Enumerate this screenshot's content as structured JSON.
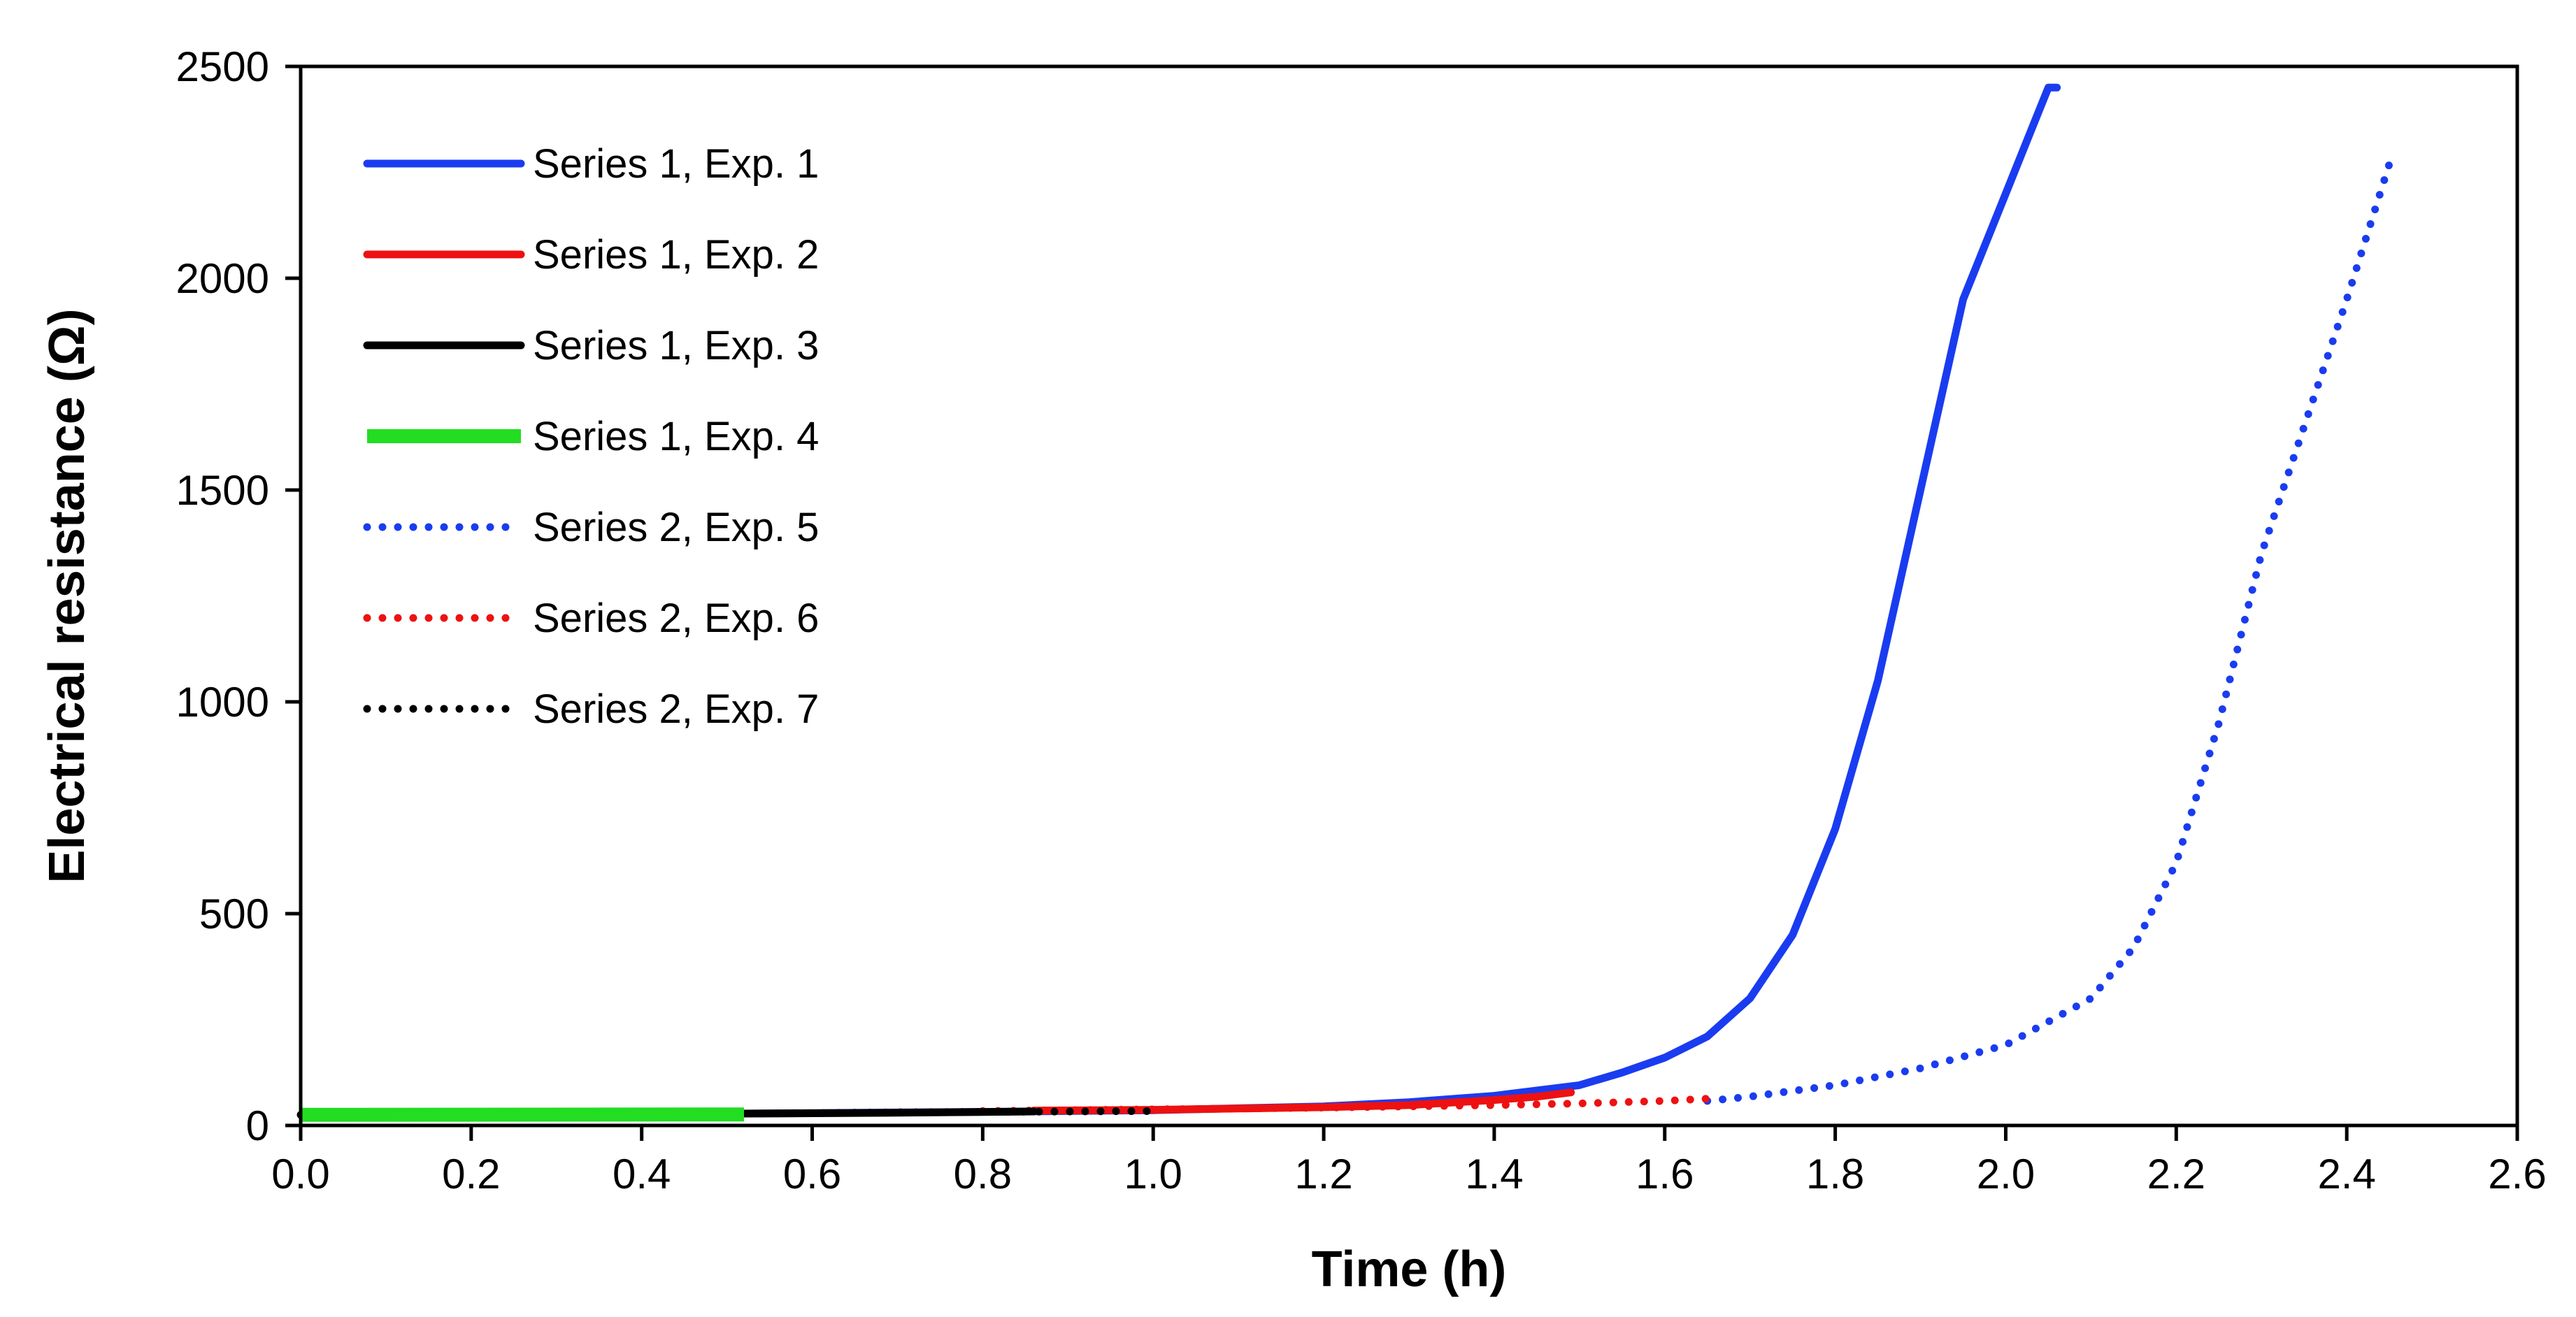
{
  "chart_data": {
    "type": "line",
    "title": "",
    "xlabel": "Time (h)",
    "ylabel": "Electrical resistance (Ω)",
    "xlim": [
      0.0,
      2.6
    ],
    "ylim": [
      0,
      2500
    ],
    "x_ticks": [
      "0.0",
      "0.2",
      "0.4",
      "0.6",
      "0.8",
      "1.0",
      "1.2",
      "1.4",
      "1.6",
      "1.8",
      "2.0",
      "2.2",
      "2.4",
      "2.6"
    ],
    "y_ticks": [
      "0",
      "500",
      "1000",
      "1500",
      "2000",
      "2500"
    ],
    "legend_position": "top-left",
    "grid": false,
    "series": [
      {
        "name": "Series 1, Exp. 1",
        "color": "#1a3cf0",
        "style": "solid",
        "x": [
          0.52,
          0.8,
          1.0,
          1.2,
          1.3,
          1.4,
          1.5,
          1.55,
          1.6,
          1.65,
          1.7,
          1.75,
          1.8,
          1.85,
          1.9,
          1.95,
          2.0,
          2.02,
          2.04,
          2.05,
          2.06
        ],
        "y": [
          28,
          32,
          36,
          45,
          55,
          70,
          95,
          125,
          160,
          210,
          300,
          450,
          700,
          1050,
          1500,
          1950,
          2200,
          2300,
          2400,
          2450,
          2450
        ]
      },
      {
        "name": "Series 1, Exp. 2",
        "color": "#ee1111",
        "style": "solid",
        "x": [
          0.86,
          1.0,
          1.1,
          1.2,
          1.3,
          1.4,
          1.45,
          1.49
        ],
        "y": [
          35,
          37,
          40,
          43,
          48,
          60,
          68,
          78
        ]
      },
      {
        "name": "Series 1, Exp. 3",
        "color": "#000000",
        "style": "solid",
        "x": [
          0.52,
          0.7,
          0.86
        ],
        "y": [
          28,
          30,
          33
        ]
      },
      {
        "name": "Series 1, Exp. 4",
        "color": "#22dd22",
        "style": "solid-thick",
        "x": [
          0.0,
          0.52
        ],
        "y": [
          25,
          26
        ]
      },
      {
        "name": "Series 2, Exp. 5",
        "color": "#1a3cf0",
        "style": "dotted",
        "x": [
          1.65,
          1.7,
          1.8,
          1.9,
          2.0,
          2.1,
          2.15,
          2.2,
          2.25,
          2.3,
          2.35,
          2.4,
          2.45
        ],
        "y": [
          58,
          68,
          95,
          135,
          190,
          300,
          420,
          620,
          950,
          1350,
          1650,
          1950,
          2270
        ]
      },
      {
        "name": "Series 2, Exp. 6",
        "color": "#ee1111",
        "style": "dotted",
        "x": [
          0.8,
          1.0,
          1.2,
          1.4,
          1.5,
          1.6,
          1.65
        ],
        "y": [
          34,
          38,
          42,
          48,
          52,
          58,
          63
        ]
      },
      {
        "name": "Series 2, Exp. 7",
        "color": "#000000",
        "style": "dotted",
        "x": [
          0.0,
          0.2,
          0.4,
          0.52,
          0.6,
          0.7,
          0.8,
          0.9,
          1.0
        ],
        "y": [
          25,
          26,
          27,
          28,
          29,
          31,
          32,
          33,
          34
        ]
      }
    ]
  }
}
